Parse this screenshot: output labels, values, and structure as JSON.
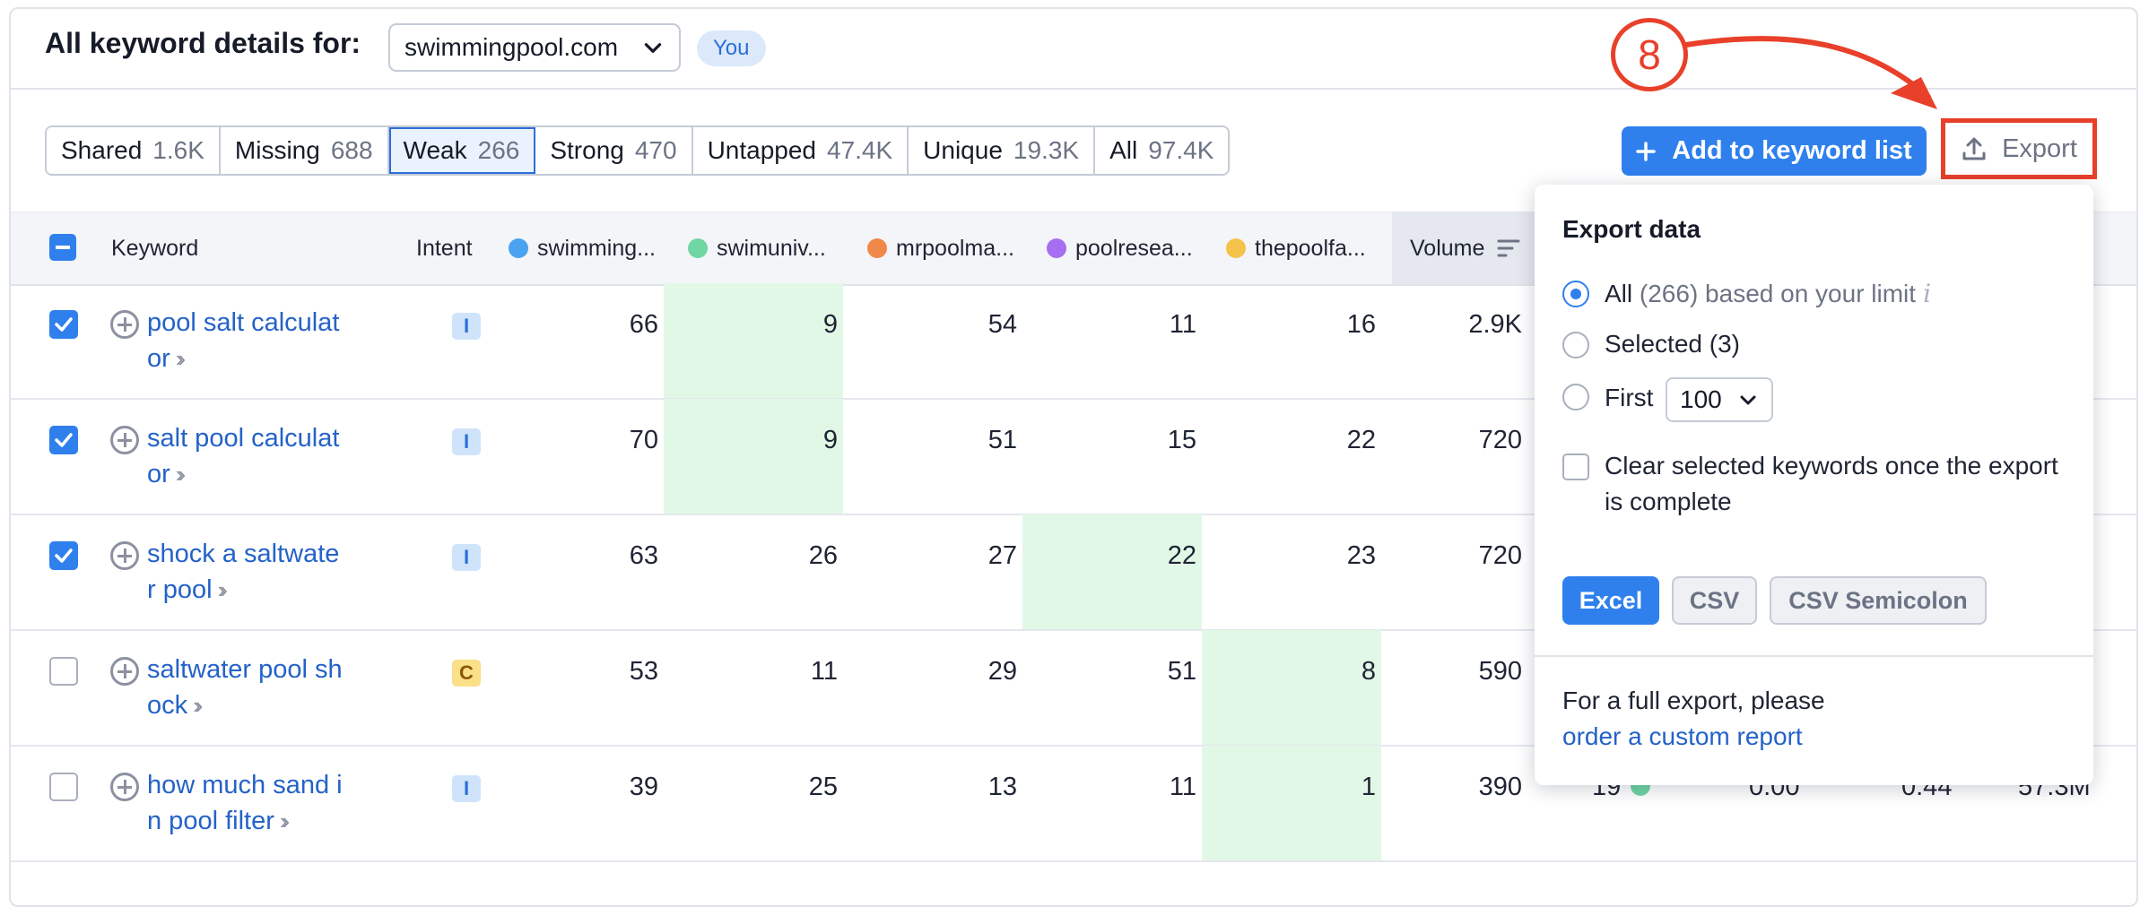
{
  "header": {
    "title": "All keyword details for:",
    "domain": "swimmingpool.com",
    "you_badge": "You"
  },
  "tabs": [
    {
      "label": "Shared",
      "count": "1.6K"
    },
    {
      "label": "Missing",
      "count": "688"
    },
    {
      "label": "Weak",
      "count": "266",
      "active": true
    },
    {
      "label": "Strong",
      "count": "470"
    },
    {
      "label": "Untapped",
      "count": "47.4K"
    },
    {
      "label": "Unique",
      "count": "19.3K"
    },
    {
      "label": "All",
      "count": "97.4K"
    }
  ],
  "toolbar": {
    "add_label": "Add to keyword list",
    "export_label": "Export",
    "step_number": "8"
  },
  "columns": {
    "keyword": "Keyword",
    "intent": "Intent",
    "domains": [
      {
        "name": "swimming...",
        "color": "#4aa3f0"
      },
      {
        "name": "swimuniv...",
        "color": "#6fd6a4"
      },
      {
        "name": "mrpoolma...",
        "color": "#f0884a"
      },
      {
        "name": "poolresea...",
        "color": "#a66ef0"
      },
      {
        "name": "thepoolfa...",
        "color": "#f5c24a"
      }
    ],
    "volume": "Volume"
  },
  "rows": [
    {
      "kw1": "pool salt calculat",
      "kw2": "or",
      "intent": "I",
      "checked": true,
      "vals": [
        "66",
        "9",
        "54",
        "11",
        "16"
      ],
      "volume": "2.9K",
      "highlight": 1
    },
    {
      "kw1": "salt pool calculat",
      "kw2": "or",
      "intent": "I",
      "checked": true,
      "vals": [
        "70",
        "9",
        "51",
        "15",
        "22"
      ],
      "volume": "720",
      "highlight": 1
    },
    {
      "kw1": "shock a saltwate",
      "kw2": "r pool",
      "intent": "I",
      "checked": true,
      "vals": [
        "63",
        "26",
        "27",
        "22",
        "23"
      ],
      "volume": "720",
      "highlight": 3
    },
    {
      "kw1": "saltwater pool sh",
      "kw2": "ock",
      "intent": "C",
      "checked": false,
      "vals": [
        "53",
        "11",
        "29",
        "51",
        "8"
      ],
      "volume": "590",
      "highlight": 4
    },
    {
      "kw1": "how much sand i",
      "kw2": "n pool filter",
      "intent": "I",
      "checked": false,
      "vals": [
        "39",
        "25",
        "13",
        "11",
        "1"
      ],
      "volume": "390",
      "highlight": 4
    }
  ],
  "peek_values": [
    "19",
    "0.00",
    "0.44",
    "57.3M"
  ],
  "export_popover": {
    "title": "Export data",
    "opt_all_prefix": "All",
    "opt_all_count": "(266) based on your limit",
    "opt_selected": "Selected (3)",
    "opt_first": "First",
    "first_value": "100",
    "clear_text": "Clear selected keywords once the export is complete",
    "formats": [
      "Excel",
      "CSV",
      "CSV Semicolon"
    ],
    "footer_text": "For a full export, please",
    "footer_link": "order a custom report"
  }
}
